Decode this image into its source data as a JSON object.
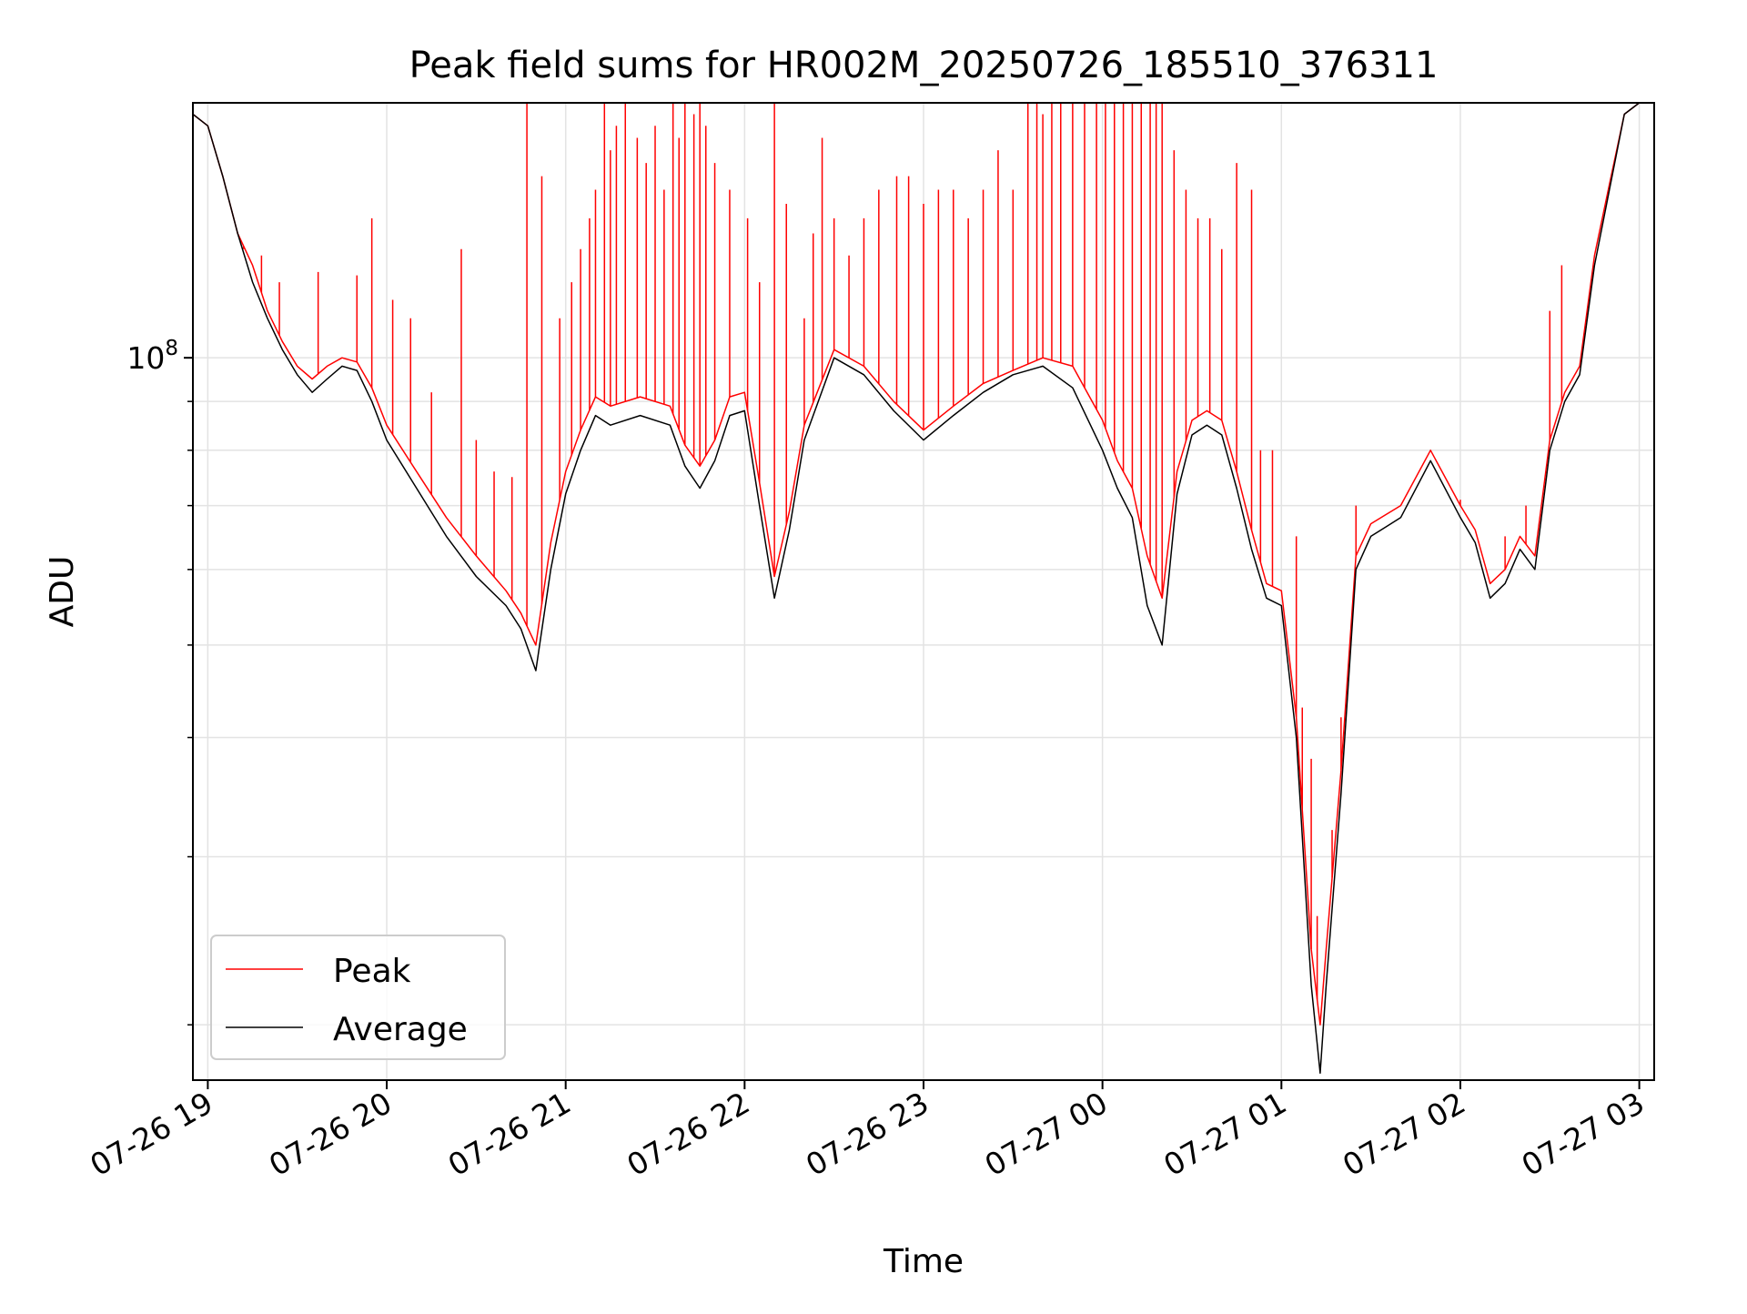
{
  "chart_data": {
    "type": "line",
    "title": "Peak field sums for HR002M_20250726_185510_376311",
    "xlabel": "Time",
    "ylabel": "ADU",
    "y_scale": "log",
    "ylim": [
      17500000,
      185000000
    ],
    "xlim": [
      "2025-07-26 18:55",
      "2025-07-27 03:05"
    ],
    "grid": true,
    "legend_position": "lower-left",
    "x_ticks": [
      {
        "t": "2025-07-26 19:00",
        "label": "07-26 19"
      },
      {
        "t": "2025-07-26 20:00",
        "label": "07-26 20"
      },
      {
        "t": "2025-07-26 21:00",
        "label": "07-26 21"
      },
      {
        "t": "2025-07-26 22:00",
        "label": "07-26 22"
      },
      {
        "t": "2025-07-26 23:00",
        "label": "07-26 23"
      },
      {
        "t": "2025-07-27 00:00",
        "label": "07-27 00"
      },
      {
        "t": "2025-07-27 01:00",
        "label": "07-27 01"
      },
      {
        "t": "2025-07-27 02:00",
        "label": "07-27 02"
      },
      {
        "t": "2025-07-27 03:00",
        "label": "07-27 03"
      }
    ],
    "y_ticks_major": [
      {
        "value": 100000000,
        "base": "10",
        "exponent": "8"
      }
    ],
    "y_ticks_minor": [
      20000000,
      30000000,
      40000000,
      50000000,
      60000000,
      70000000,
      80000000,
      90000000,
      200000000
    ],
    "series": [
      {
        "name": "Average",
        "color": "#000000",
        "x": [
          "2025-07-26 18:55",
          "2025-07-26 19:00",
          "2025-07-26 19:05",
          "2025-07-26 19:10",
          "2025-07-26 19:15",
          "2025-07-26 19:20",
          "2025-07-26 19:25",
          "2025-07-26 19:30",
          "2025-07-26 19:35",
          "2025-07-26 19:40",
          "2025-07-26 19:45",
          "2025-07-26 19:50",
          "2025-07-26 19:55",
          "2025-07-26 20:00",
          "2025-07-26 20:10",
          "2025-07-26 20:20",
          "2025-07-26 20:30",
          "2025-07-26 20:40",
          "2025-07-26 20:45",
          "2025-07-26 20:50",
          "2025-07-26 20:55",
          "2025-07-26 21:00",
          "2025-07-26 21:05",
          "2025-07-26 21:10",
          "2025-07-26 21:15",
          "2025-07-26 21:25",
          "2025-07-26 21:35",
          "2025-07-26 21:40",
          "2025-07-26 21:45",
          "2025-07-26 21:50",
          "2025-07-26 21:55",
          "2025-07-26 22:00",
          "2025-07-26 22:05",
          "2025-07-26 22:10",
          "2025-07-26 22:15",
          "2025-07-26 22:20",
          "2025-07-26 22:30",
          "2025-07-26 22:40",
          "2025-07-26 22:50",
          "2025-07-26 23:00",
          "2025-07-26 23:10",
          "2025-07-26 23:20",
          "2025-07-26 23:30",
          "2025-07-26 23:40",
          "2025-07-26 23:50",
          "2025-07-27 00:00",
          "2025-07-27 00:05",
          "2025-07-27 00:10",
          "2025-07-27 00:15",
          "2025-07-27 00:20",
          "2025-07-27 00:25",
          "2025-07-27 00:30",
          "2025-07-27 00:35",
          "2025-07-27 00:40",
          "2025-07-27 00:45",
          "2025-07-27 00:50",
          "2025-07-27 00:55",
          "2025-07-27 01:00",
          "2025-07-27 01:05",
          "2025-07-27 01:10",
          "2025-07-27 01:13",
          "2025-07-27 01:15",
          "2025-07-27 01:20",
          "2025-07-27 01:25",
          "2025-07-27 01:30",
          "2025-07-27 01:40",
          "2025-07-27 01:50",
          "2025-07-27 02:00",
          "2025-07-27 02:05",
          "2025-07-27 02:10",
          "2025-07-27 02:15",
          "2025-07-27 02:20",
          "2025-07-27 02:25",
          "2025-07-27 02:30",
          "2025-07-27 02:35",
          "2025-07-27 02:40",
          "2025-07-27 02:45",
          "2025-07-27 02:50",
          "2025-07-27 02:55",
          "2025-07-27 03:00",
          "2025-07-27 03:05"
        ],
        "y": [
          180000000,
          175000000,
          155000000,
          135000000,
          120000000,
          110000000,
          102000000,
          96000000,
          92000000,
          95000000,
          98000000,
          97000000,
          90000000,
          82000000,
          73000000,
          65000000,
          59000000,
          55000000,
          52000000,
          47000000,
          60000000,
          72000000,
          80000000,
          87000000,
          85000000,
          87000000,
          85000000,
          77000000,
          73000000,
          78000000,
          87000000,
          88000000,
          70000000,
          56000000,
          66000000,
          82000000,
          100000000,
          96000000,
          88000000,
          82000000,
          87000000,
          92000000,
          96000000,
          98000000,
          93000000,
          80000000,
          73000000,
          68000000,
          55000000,
          50000000,
          72000000,
          83000000,
          85000000,
          83000000,
          73000000,
          63000000,
          56000000,
          55000000,
          40000000,
          22000000,
          17800000,
          22000000,
          35000000,
          60000000,
          65000000,
          68000000,
          78000000,
          68000000,
          64000000,
          56000000,
          58000000,
          63000000,
          60000000,
          80000000,
          90000000,
          96000000,
          125000000,
          150000000,
          180000000,
          185000000,
          185000000
        ]
      },
      {
        "name": "Peak",
        "color": "#ff0000",
        "x": [
          "2025-07-26 18:55",
          "2025-07-26 19:00",
          "2025-07-26 19:05",
          "2025-07-26 19:10",
          "2025-07-26 19:15",
          "2025-07-26 19:20",
          "2025-07-26 19:25",
          "2025-07-26 19:30",
          "2025-07-26 19:35",
          "2025-07-26 19:40",
          "2025-07-26 19:45",
          "2025-07-26 19:50",
          "2025-07-26 19:55",
          "2025-07-26 20:00",
          "2025-07-26 20:10",
          "2025-07-26 20:20",
          "2025-07-26 20:30",
          "2025-07-26 20:40",
          "2025-07-26 20:45",
          "2025-07-26 20:50",
          "2025-07-26 20:55",
          "2025-07-26 21:00",
          "2025-07-26 21:05",
          "2025-07-26 21:10",
          "2025-07-26 21:15",
          "2025-07-26 21:25",
          "2025-07-26 21:35",
          "2025-07-26 21:40",
          "2025-07-26 21:45",
          "2025-07-26 21:50",
          "2025-07-26 21:55",
          "2025-07-26 22:00",
          "2025-07-26 22:05",
          "2025-07-26 22:10",
          "2025-07-26 22:15",
          "2025-07-26 22:20",
          "2025-07-26 22:30",
          "2025-07-26 22:40",
          "2025-07-26 22:50",
          "2025-07-26 23:00",
          "2025-07-26 23:10",
          "2025-07-26 23:20",
          "2025-07-26 23:30",
          "2025-07-26 23:40",
          "2025-07-26 23:50",
          "2025-07-27 00:00",
          "2025-07-27 00:05",
          "2025-07-27 00:10",
          "2025-07-27 00:15",
          "2025-07-27 00:20",
          "2025-07-27 00:25",
          "2025-07-27 00:30",
          "2025-07-27 00:35",
          "2025-07-27 00:40",
          "2025-07-27 00:45",
          "2025-07-27 00:50",
          "2025-07-27 00:55",
          "2025-07-27 01:00",
          "2025-07-27 01:05",
          "2025-07-27 01:10",
          "2025-07-27 01:13",
          "2025-07-27 01:15",
          "2025-07-27 01:20",
          "2025-07-27 01:25",
          "2025-07-27 01:30",
          "2025-07-27 01:40",
          "2025-07-27 01:50",
          "2025-07-27 02:00",
          "2025-07-27 02:05",
          "2025-07-27 02:10",
          "2025-07-27 02:15",
          "2025-07-27 02:20",
          "2025-07-27 02:25",
          "2025-07-27 02:30",
          "2025-07-27 02:35",
          "2025-07-27 02:40",
          "2025-07-27 02:45",
          "2025-07-27 02:50",
          "2025-07-27 02:55",
          "2025-07-27 03:00",
          "2025-07-27 03:05"
        ],
        "y": [
          180000000,
          175000000,
          155000000,
          135000000,
          125000000,
          112000000,
          104000000,
          98000000,
          95000000,
          98000000,
          100000000,
          99000000,
          93000000,
          85000000,
          76000000,
          68000000,
          62000000,
          57000000,
          54000000,
          50000000,
          64000000,
          76000000,
          84000000,
          91000000,
          89000000,
          91000000,
          89000000,
          81000000,
          77000000,
          82000000,
          91000000,
          92000000,
          74000000,
          59000000,
          69000000,
          85000000,
          102000000,
          98000000,
          90000000,
          84000000,
          89000000,
          94000000,
          97000000,
          100000000,
          98000000,
          86000000,
          78000000,
          73000000,
          62000000,
          56000000,
          76000000,
          86000000,
          88000000,
          86000000,
          76000000,
          66000000,
          58000000,
          57000000,
          42000000,
          24000000,
          20000000,
          24000000,
          37000000,
          62000000,
          67000000,
          70000000,
          80000000,
          70000000,
          66000000,
          58000000,
          60000000,
          65000000,
          62000000,
          82000000,
          92000000,
          98000000,
          128000000,
          152000000,
          180000000,
          185000000,
          185000000
        ],
        "spikes": [
          [
            "2025-07-26 19:12",
            130000000
          ],
          [
            "2025-07-26 19:18",
            128000000
          ],
          [
            "2025-07-26 19:24",
            120000000
          ],
          [
            "2025-07-26 19:37",
            123000000
          ],
          [
            "2025-07-26 19:50",
            122000000
          ],
          [
            "2025-07-26 19:55",
            140000000
          ],
          [
            "2025-07-26 20:02",
            115000000
          ],
          [
            "2025-07-26 20:08",
            110000000
          ],
          [
            "2025-07-26 20:15",
            92000000
          ],
          [
            "2025-07-26 20:25",
            130000000
          ],
          [
            "2025-07-26 20:30",
            82000000
          ],
          [
            "2025-07-26 20:36",
            76000000
          ],
          [
            "2025-07-26 20:42",
            75000000
          ],
          [
            "2025-07-26 20:47",
            185000000
          ],
          [
            "2025-07-26 20:52",
            155000000
          ],
          [
            "2025-07-26 20:58",
            110000000
          ],
          [
            "2025-07-26 21:02",
            120000000
          ],
          [
            "2025-07-26 21:05",
            130000000
          ],
          [
            "2025-07-26 21:08",
            140000000
          ],
          [
            "2025-07-26 21:10",
            150000000
          ],
          [
            "2025-07-26 21:13",
            185000000
          ],
          [
            "2025-07-26 21:15",
            165000000
          ],
          [
            "2025-07-26 21:17",
            175000000
          ],
          [
            "2025-07-26 21:20",
            185000000
          ],
          [
            "2025-07-26 21:24",
            170000000
          ],
          [
            "2025-07-26 21:27",
            160000000
          ],
          [
            "2025-07-26 21:30",
            175000000
          ],
          [
            "2025-07-26 21:33",
            150000000
          ],
          [
            "2025-07-26 21:36",
            185000000
          ],
          [
            "2025-07-26 21:38",
            170000000
          ],
          [
            "2025-07-26 21:40",
            185000000
          ],
          [
            "2025-07-26 21:43",
            180000000
          ],
          [
            "2025-07-26 21:45",
            185000000
          ],
          [
            "2025-07-26 21:47",
            175000000
          ],
          [
            "2025-07-26 21:50",
            160000000
          ],
          [
            "2025-07-26 21:55",
            150000000
          ],
          [
            "2025-07-26 22:01",
            140000000
          ],
          [
            "2025-07-26 22:05",
            120000000
          ],
          [
            "2025-07-26 22:10",
            185000000
          ],
          [
            "2025-07-26 22:14",
            145000000
          ],
          [
            "2025-07-26 22:20",
            110000000
          ],
          [
            "2025-07-26 22:23",
            135000000
          ],
          [
            "2025-07-26 22:26",
            170000000
          ],
          [
            "2025-07-26 22:30",
            140000000
          ],
          [
            "2025-07-26 22:35",
            128000000
          ],
          [
            "2025-07-26 22:40",
            140000000
          ],
          [
            "2025-07-26 22:45",
            150000000
          ],
          [
            "2025-07-26 22:51",
            155000000
          ],
          [
            "2025-07-26 22:55",
            155000000
          ],
          [
            "2025-07-26 23:00",
            145000000
          ],
          [
            "2025-07-26 23:05",
            150000000
          ],
          [
            "2025-07-26 23:10",
            150000000
          ],
          [
            "2025-07-26 23:15",
            140000000
          ],
          [
            "2025-07-26 23:20",
            150000000
          ],
          [
            "2025-07-26 23:25",
            165000000
          ],
          [
            "2025-07-26 23:30",
            150000000
          ],
          [
            "2025-07-26 23:35",
            185000000
          ],
          [
            "2025-07-26 23:38",
            185000000
          ],
          [
            "2025-07-26 23:40",
            180000000
          ],
          [
            "2025-07-26 23:43",
            185000000
          ],
          [
            "2025-07-26 23:46",
            185000000
          ],
          [
            "2025-07-26 23:50",
            185000000
          ],
          [
            "2025-07-26 23:54",
            185000000
          ],
          [
            "2025-07-26 23:58",
            185000000
          ],
          [
            "2025-07-27 00:01",
            185000000
          ],
          [
            "2025-07-27 00:04",
            185000000
          ],
          [
            "2025-07-27 00:07",
            185000000
          ],
          [
            "2025-07-27 00:10",
            185000000
          ],
          [
            "2025-07-27 00:13",
            185000000
          ],
          [
            "2025-07-27 00:16",
            185000000
          ],
          [
            "2025-07-27 00:18",
            185000000
          ],
          [
            "2025-07-27 00:20",
            185000000
          ],
          [
            "2025-07-27 00:24",
            165000000
          ],
          [
            "2025-07-27 00:28",
            150000000
          ],
          [
            "2025-07-27 00:32",
            140000000
          ],
          [
            "2025-07-27 00:36",
            140000000
          ],
          [
            "2025-07-27 00:40",
            130000000
          ],
          [
            "2025-07-27 00:45",
            160000000
          ],
          [
            "2025-07-27 00:50",
            150000000
          ],
          [
            "2025-07-27 00:53",
            80000000
          ],
          [
            "2025-07-27 00:57",
            80000000
          ],
          [
            "2025-07-27 01:05",
            65000000
          ],
          [
            "2025-07-27 01:07",
            43000000
          ],
          [
            "2025-07-27 01:10",
            38000000
          ],
          [
            "2025-07-27 01:12",
            26000000
          ],
          [
            "2025-07-27 01:17",
            32000000
          ],
          [
            "2025-07-27 01:20",
            42000000
          ],
          [
            "2025-07-27 01:25",
            70000000
          ],
          [
            "2025-07-27 02:00",
            71000000
          ],
          [
            "2025-07-27 02:15",
            65000000
          ],
          [
            "2025-07-27 02:22",
            70000000
          ],
          [
            "2025-07-27 02:30",
            112000000
          ],
          [
            "2025-07-27 02:34",
            125000000
          ]
        ]
      }
    ]
  }
}
